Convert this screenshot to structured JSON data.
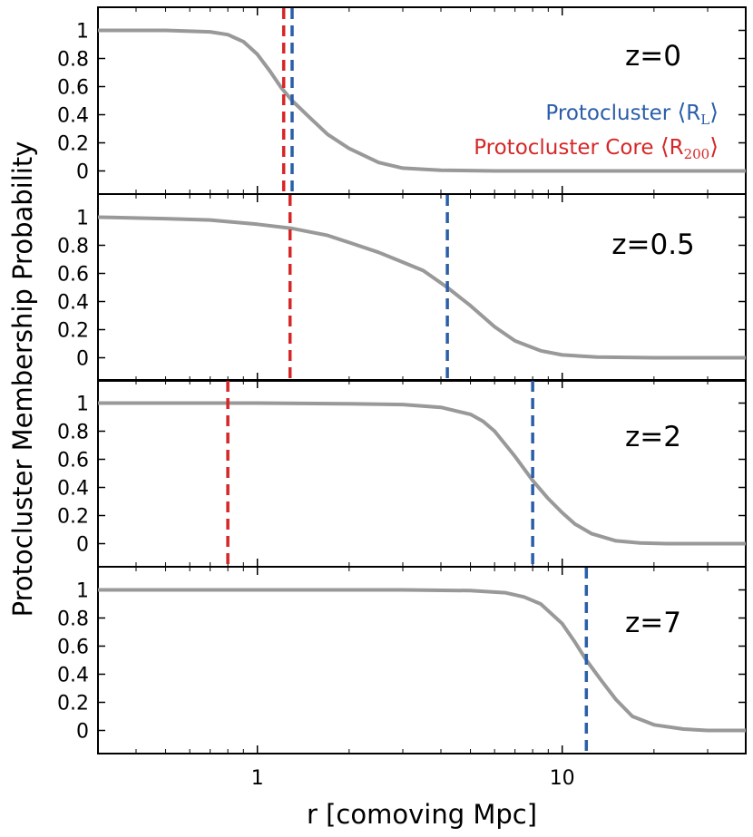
{
  "chart_data": {
    "type": "line",
    "xscale": "log",
    "xlim": [
      0.3,
      40
    ],
    "ylim": [
      -0.1,
      1.1
    ],
    "xlabel": "r [comoving Mpc]",
    "ylabel": "Protocluster Membership Probability",
    "x_ticks": [
      1,
      10
    ],
    "x_tick_labels": [
      "1",
      "10"
    ],
    "y_ticks": [
      0,
      0.2,
      0.4,
      0.6,
      0.8,
      1
    ],
    "y_tick_labels": [
      "0",
      "0.2",
      "0.4",
      "0.6",
      "0.8",
      "1"
    ],
    "colors": {
      "curve": "#999999",
      "lagrangian": "#2a5ea8",
      "core": "#d62728"
    },
    "legend": {
      "position": "top-right of first panel",
      "entries": [
        {
          "name": "Protocluster",
          "symbol": "R",
          "subscript": "L",
          "color": "#2a5ea8"
        },
        {
          "name": "Protocluster Core",
          "symbol": "R",
          "subscript": "200",
          "color": "#d62728"
        }
      ]
    },
    "panels": [
      {
        "label": "z=0",
        "r_L": 1.3,
        "r_200": 1.22,
        "curve": {
          "x": [
            0.3,
            0.5,
            0.7,
            0.8,
            0.9,
            1.0,
            1.1,
            1.2,
            1.3,
            1.5,
            1.7,
            2.0,
            2.5,
            3.0,
            4.0,
            6.0,
            10.0,
            20.0,
            40.0
          ],
          "y": [
            1.0,
            1.0,
            0.99,
            0.97,
            0.92,
            0.83,
            0.71,
            0.59,
            0.5,
            0.37,
            0.26,
            0.16,
            0.06,
            0.02,
            0.005,
            0.0,
            0.0,
            0.0,
            0.0
          ]
        }
      },
      {
        "label": "z=0.5",
        "r_L": 4.2,
        "r_200": 1.28,
        "curve": {
          "x": [
            0.3,
            0.5,
            0.7,
            1.0,
            1.3,
            1.7,
            2.0,
            2.5,
            3.0,
            3.5,
            4.2,
            5.0,
            6.0,
            7.0,
            8.5,
            10.0,
            13.0,
            20.0,
            40.0
          ],
          "y": [
            1.0,
            0.99,
            0.98,
            0.95,
            0.92,
            0.87,
            0.82,
            0.75,
            0.68,
            0.62,
            0.5,
            0.37,
            0.22,
            0.12,
            0.05,
            0.02,
            0.005,
            0.0,
            0.0
          ]
        }
      },
      {
        "label": "z=2",
        "r_L": 8.0,
        "r_200": 0.8,
        "curve": {
          "x": [
            0.3,
            1.0,
            2.0,
            3.0,
            4.0,
            5.0,
            5.5,
            6.0,
            7.0,
            8.0,
            9.0,
            10.0,
            11.0,
            12.5,
            15.0,
            18.0,
            22.0,
            40.0
          ],
          "y": [
            1.0,
            1.0,
            0.995,
            0.99,
            0.97,
            0.92,
            0.87,
            0.8,
            0.62,
            0.45,
            0.32,
            0.22,
            0.14,
            0.07,
            0.02,
            0.005,
            0.0,
            0.0
          ]
        }
      },
      {
        "label": "z=7",
        "r_L": 12.0,
        "r_200": null,
        "curve": {
          "x": [
            0.3,
            1.0,
            3.0,
            5.0,
            6.5,
            7.5,
            8.5,
            10.0,
            11.0,
            12.0,
            13.5,
            15.0,
            17.0,
            20.0,
            25.0,
            30.0,
            40.0
          ],
          "y": [
            1.0,
            1.0,
            1.0,
            0.995,
            0.98,
            0.95,
            0.9,
            0.76,
            0.63,
            0.5,
            0.35,
            0.22,
            0.1,
            0.04,
            0.01,
            0.0,
            0.0
          ]
        }
      }
    ]
  }
}
